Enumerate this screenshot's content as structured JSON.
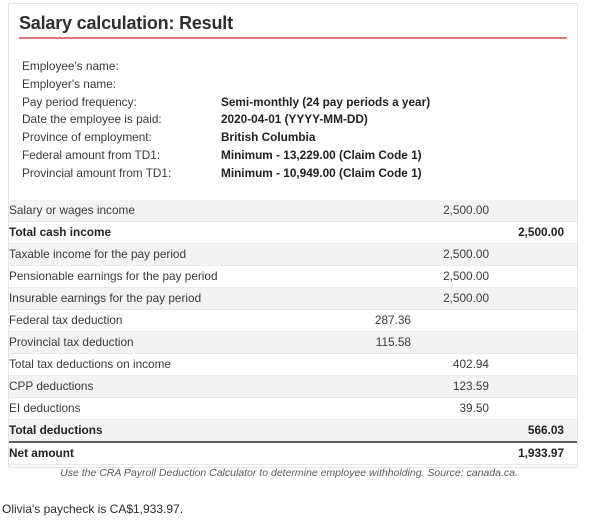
{
  "card": {
    "title": "Salary calculation: Result",
    "accent_color": "#db7b78",
    "info": [
      {
        "label": "Employee's name:",
        "value": ""
      },
      {
        "label": "Employer's name:",
        "value": ""
      },
      {
        "label": "Pay period frequency:",
        "value": "Semi-monthly (24 pay periods a year)"
      },
      {
        "label": "Date the employee is paid:",
        "value": "2020-04-01 (YYYY-MM-DD)"
      },
      {
        "label": "Province of employment:",
        "value": "British Columbia"
      },
      {
        "label": "Federal amount from TD1:",
        "value": "Minimum - 13,229.00 (Claim Code 1)"
      },
      {
        "label": "Provincial amount from TD1:",
        "value": "Minimum - 10,949.00 (Claim Code 1)"
      }
    ],
    "table": {
      "rows": [
        {
          "label": "Salary or wages income",
          "col1": "",
          "col2": "2,500.00",
          "col3": "",
          "bold": false,
          "shaded": true,
          "thick_top": false
        },
        {
          "label": "Total cash income",
          "col1": "",
          "col2": "",
          "col3": "2,500.00",
          "bold": true,
          "shaded": false,
          "thick_top": false
        },
        {
          "label": "Taxable income for the pay period",
          "col1": "",
          "col2": "2,500.00",
          "col3": "",
          "bold": false,
          "shaded": true,
          "thick_top": false
        },
        {
          "label": "Pensionable earnings for the pay period",
          "col1": "",
          "col2": "2,500.00",
          "col3": "",
          "bold": false,
          "shaded": false,
          "thick_top": false
        },
        {
          "label": "Insurable earnings for the pay period",
          "col1": "",
          "col2": "2,500.00",
          "col3": "",
          "bold": false,
          "shaded": true,
          "thick_top": false
        },
        {
          "label": "Federal tax deduction",
          "col1": "287.36",
          "col2": "",
          "col3": "",
          "bold": false,
          "shaded": false,
          "thick_top": false
        },
        {
          "label": "Provincial tax deduction",
          "col1": "115.58",
          "col2": "",
          "col3": "",
          "bold": false,
          "shaded": true,
          "thick_top": false
        },
        {
          "label": "Total tax deductions on income",
          "col1": "",
          "col2": "402.94",
          "col3": "",
          "bold": false,
          "shaded": false,
          "thick_top": false
        },
        {
          "label": "CPP deductions",
          "col1": "",
          "col2": "123.59",
          "col3": "",
          "bold": false,
          "shaded": true,
          "thick_top": false
        },
        {
          "label": "EI deductions",
          "col1": "",
          "col2": "39.50",
          "col3": "",
          "bold": false,
          "shaded": false,
          "thick_top": false
        },
        {
          "label": "Total deductions",
          "col1": "",
          "col2": "",
          "col3": "566.03",
          "bold": true,
          "shaded": true,
          "thick_top": false
        },
        {
          "label": "Net amount",
          "col1": "",
          "col2": "",
          "col3": "1,933.97",
          "bold": true,
          "shaded": false,
          "thick_top": true
        }
      ]
    }
  },
  "caption": "Use the CRA Payroll Deduction Calculator to determine employee withholding. Source: canada.ca.",
  "footer_text": "Olivia's paycheck is CA$1,933.97."
}
